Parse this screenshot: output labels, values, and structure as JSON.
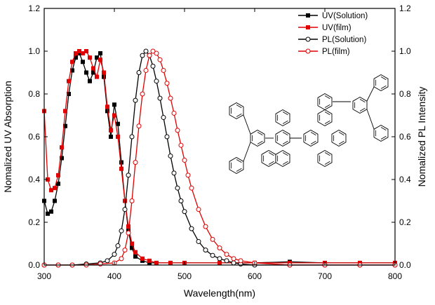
{
  "chart_data": {
    "type": "line",
    "xlabel": "Wavelength(nm)",
    "ylabel": "Nomalized UV Absorption",
    "y2label": "Nomalized PL Intensity",
    "xlim": [
      300,
      800
    ],
    "ylim": [
      0,
      1.2
    ],
    "y2lim": [
      0,
      1.2
    ],
    "x_ticks": [
      300,
      400,
      500,
      600,
      700,
      800
    ],
    "y_ticks": [
      0.0,
      0.2,
      0.4,
      0.6,
      0.8,
      1.0,
      1.2
    ],
    "y2_ticks": [
      0.0,
      0.2,
      0.4,
      0.6,
      0.8,
      1.0,
      1.2
    ],
    "grid": false,
    "legend_position": "top-right",
    "series": [
      {
        "name": "UV(Solution)",
        "color": "#000000",
        "marker": "filled-square",
        "x": [
          300,
          305,
          310,
          315,
          320,
          325,
          330,
          335,
          340,
          345,
          350,
          355,
          360,
          365,
          370,
          375,
          380,
          385,
          390,
          395,
          400,
          405,
          410,
          415,
          420,
          425,
          430,
          440,
          450,
          460,
          480,
          500,
          550,
          600,
          650,
          700,
          750,
          800
        ],
        "y": [
          0.3,
          0.24,
          0.25,
          0.3,
          0.38,
          0.5,
          0.65,
          0.8,
          0.91,
          0.97,
          0.99,
          0.95,
          0.9,
          0.86,
          0.9,
          0.97,
          0.99,
          0.88,
          0.72,
          0.6,
          0.75,
          0.66,
          0.48,
          0.3,
          0.16,
          0.08,
          0.04,
          0.02,
          0.01,
          0.01,
          0.01,
          0.01,
          0.01,
          0.01,
          0.015,
          0.01,
          0.01,
          0.01
        ]
      },
      {
        "name": "UV(film)",
        "color": "#e00000",
        "marker": "filled-square",
        "x": [
          300,
          305,
          310,
          315,
          320,
          325,
          330,
          335,
          340,
          345,
          350,
          355,
          360,
          365,
          370,
          375,
          380,
          385,
          390,
          395,
          400,
          405,
          410,
          415,
          420,
          425,
          430,
          440,
          450,
          460,
          480,
          500,
          550,
          600,
          650,
          700,
          750,
          800
        ],
        "y": [
          0.72,
          0.4,
          0.35,
          0.36,
          0.42,
          0.55,
          0.72,
          0.86,
          0.95,
          0.99,
          1.0,
          0.99,
          1.0,
          0.97,
          0.92,
          0.88,
          0.96,
          0.9,
          0.74,
          0.63,
          0.7,
          0.6,
          0.45,
          0.3,
          0.18,
          0.1,
          0.06,
          0.03,
          0.02,
          0.01,
          0.01,
          0.01,
          0.01,
          0.01,
          0.01,
          0.01,
          0.01,
          0.01
        ]
      },
      {
        "name": "PL(Solution)",
        "color": "#000000",
        "marker": "open-circle",
        "x": [
          300,
          320,
          340,
          360,
          380,
          390,
          400,
          405,
          410,
          415,
          420,
          425,
          430,
          435,
          440,
          445,
          450,
          455,
          460,
          465,
          470,
          475,
          480,
          485,
          490,
          495,
          500,
          510,
          520,
          530,
          540,
          550,
          560,
          570,
          580,
          600,
          650,
          700,
          750,
          800
        ],
        "y": [
          0.0,
          0.0,
          0.0,
          0.005,
          0.01,
          0.02,
          0.05,
          0.09,
          0.16,
          0.26,
          0.42,
          0.6,
          0.77,
          0.9,
          0.98,
          1.0,
          0.98,
          0.93,
          0.86,
          0.78,
          0.69,
          0.6,
          0.51,
          0.43,
          0.36,
          0.3,
          0.25,
          0.17,
          0.11,
          0.07,
          0.045,
          0.03,
          0.02,
          0.01,
          0.005,
          0.0,
          0.0,
          0.0,
          0.0,
          0.0
        ]
      },
      {
        "name": "PL(film)",
        "color": "#e00000",
        "marker": "open-circle",
        "x": [
          300,
          320,
          340,
          360,
          380,
          400,
          410,
          415,
          420,
          425,
          430,
          435,
          440,
          445,
          450,
          455,
          460,
          465,
          470,
          475,
          480,
          485,
          490,
          495,
          500,
          505,
          510,
          520,
          530,
          540,
          550,
          560,
          570,
          580,
          600,
          650,
          700,
          750,
          800
        ],
        "y": [
          0.0,
          0.0,
          0.0,
          0.0,
          0.005,
          0.01,
          0.03,
          0.07,
          0.15,
          0.3,
          0.48,
          0.65,
          0.8,
          0.91,
          0.98,
          1.0,
          0.99,
          0.96,
          0.91,
          0.85,
          0.78,
          0.71,
          0.63,
          0.56,
          0.49,
          0.42,
          0.36,
          0.26,
          0.18,
          0.12,
          0.08,
          0.05,
          0.03,
          0.02,
          0.01,
          0.0,
          0.0,
          0.0,
          0.0
        ]
      }
    ]
  }
}
